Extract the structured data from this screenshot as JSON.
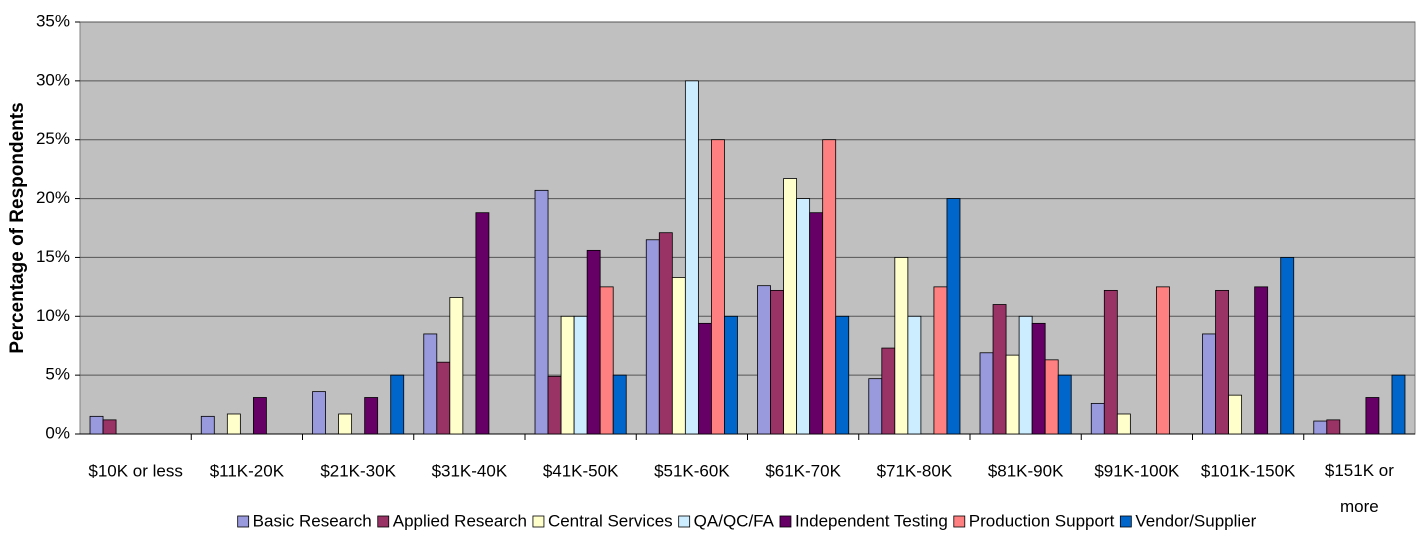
{
  "chart_data": {
    "type": "bar",
    "y_label": "Percentage of Respondents",
    "categories": [
      "$10K or less",
      "$11K-20K",
      "$21K-30K",
      "$31K-40K",
      "$41K-50K",
      "$51K-60K",
      "$61K-70K",
      "$71K-80K",
      "$81K-90K",
      "$91K-100K",
      "$101K-150K",
      "$151K or more"
    ],
    "series": [
      {
        "name": "Basic Research",
        "color": "#9999dd",
        "values": [
          1.5,
          1.5,
          3.6,
          8.5,
          20.7,
          16.5,
          12.6,
          4.7,
          6.9,
          2.6,
          8.5,
          1.1
        ]
      },
      {
        "name": "Applied Research",
        "color": "#993366",
        "values": [
          1.2,
          0,
          0,
          6.1,
          4.9,
          17.1,
          12.2,
          7.3,
          11,
          12.2,
          12.2,
          1.2
        ]
      },
      {
        "name": "Central Services",
        "color": "#ffffcc",
        "values": [
          0,
          1.7,
          1.7,
          11.6,
          10,
          13.3,
          21.7,
          15,
          6.7,
          1.7,
          3.3,
          0
        ]
      },
      {
        "name": "QA/QC/FA",
        "color": "#ccecff",
        "values": [
          0,
          0,
          0,
          0,
          10,
          30,
          20,
          10,
          10,
          0,
          0,
          0
        ]
      },
      {
        "name": "Independent Testing",
        "color": "#660066",
        "values": [
          0,
          3.1,
          3.1,
          18.8,
          15.6,
          9.4,
          18.8,
          0,
          9.4,
          0,
          12.5,
          3.1
        ]
      },
      {
        "name": "Production Support",
        "color": "#ff8080",
        "values": [
          0,
          0,
          0,
          0,
          12.5,
          25,
          25,
          12.5,
          6.3,
          12.5,
          0,
          0
        ]
      },
      {
        "name": "Vendor/Supplier",
        "color": "#0066cc",
        "values": [
          0,
          0,
          5,
          0,
          5,
          10,
          10,
          20,
          5,
          0,
          15,
          5
        ]
      }
    ],
    "ylim": [
      0,
      35
    ],
    "yticks": [
      {
        "value": 0,
        "label": "0%"
      },
      {
        "value": 5,
        "label": "5%"
      },
      {
        "value": 10,
        "label": "10%"
      },
      {
        "value": 15,
        "label": "15%"
      },
      {
        "value": 20,
        "label": "20%"
      },
      {
        "value": 25,
        "label": "25%"
      },
      {
        "value": 30,
        "label": "30%"
      },
      {
        "value": 35,
        "label": "35%"
      }
    ],
    "grid": true,
    "legend": "bottom"
  }
}
